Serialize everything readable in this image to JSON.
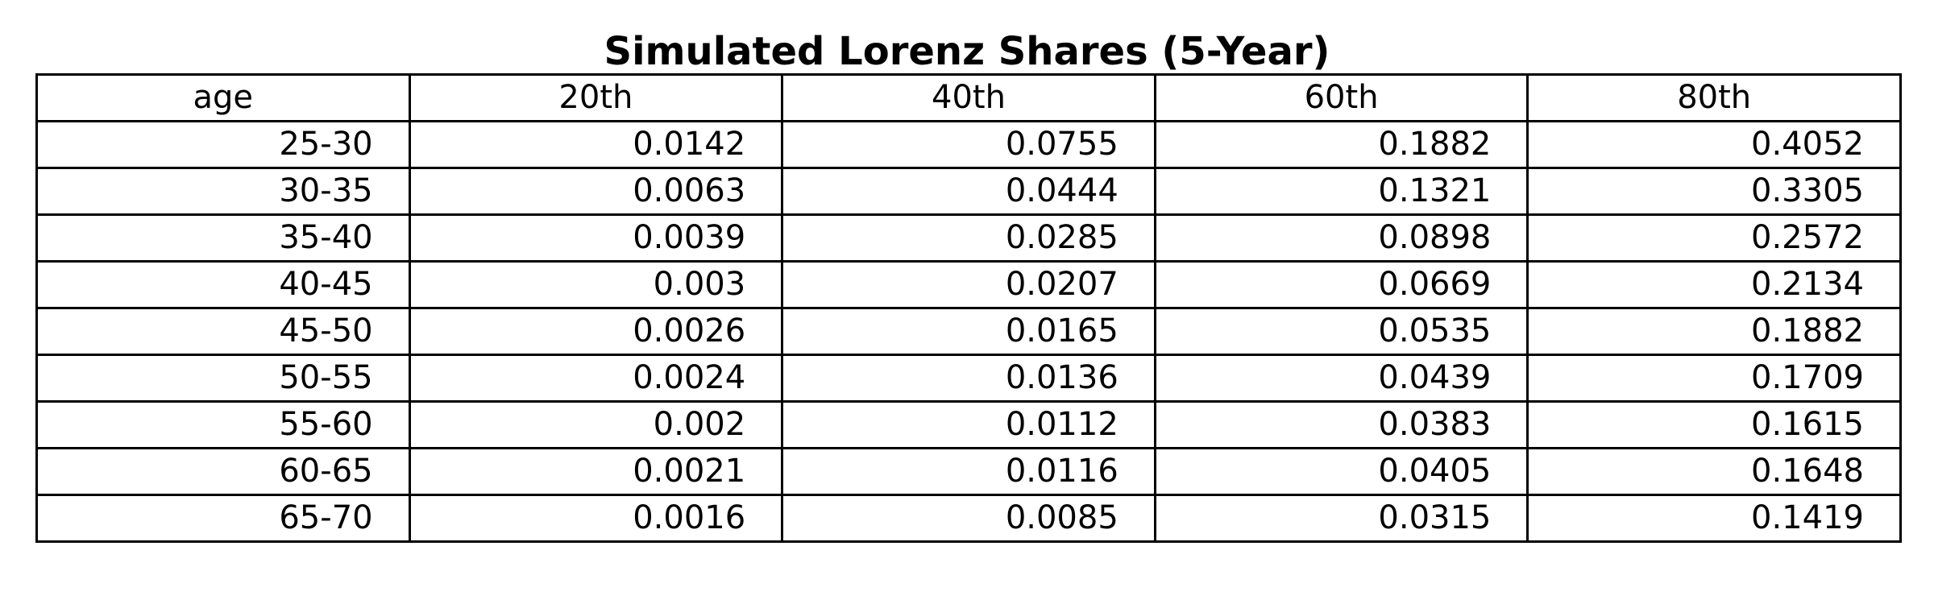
{
  "chart_data": {
    "type": "table",
    "title": "Simulated Lorenz Shares (5-Year)",
    "columns": [
      "age",
      "20th",
      "40th",
      "60th",
      "80th"
    ],
    "rows": [
      [
        "25-30",
        "0.0142",
        "0.0755",
        "0.1882",
        "0.4052"
      ],
      [
        "30-35",
        "0.0063",
        "0.0444",
        "0.1321",
        "0.3305"
      ],
      [
        "35-40",
        "0.0039",
        "0.0285",
        "0.0898",
        "0.2572"
      ],
      [
        "40-45",
        "0.003",
        "0.0207",
        "0.0669",
        "0.2134"
      ],
      [
        "45-50",
        "0.0026",
        "0.0165",
        "0.0535",
        "0.1882"
      ],
      [
        "50-55",
        "0.0024",
        "0.0136",
        "0.0439",
        "0.1709"
      ],
      [
        "55-60",
        "0.002",
        "0.0112",
        "0.0383",
        "0.1615"
      ],
      [
        "60-65",
        "0.0021",
        "0.0116",
        "0.0405",
        "0.1648"
      ],
      [
        "65-70",
        "0.0016",
        "0.0085",
        "0.0315",
        "0.1419"
      ]
    ]
  }
}
